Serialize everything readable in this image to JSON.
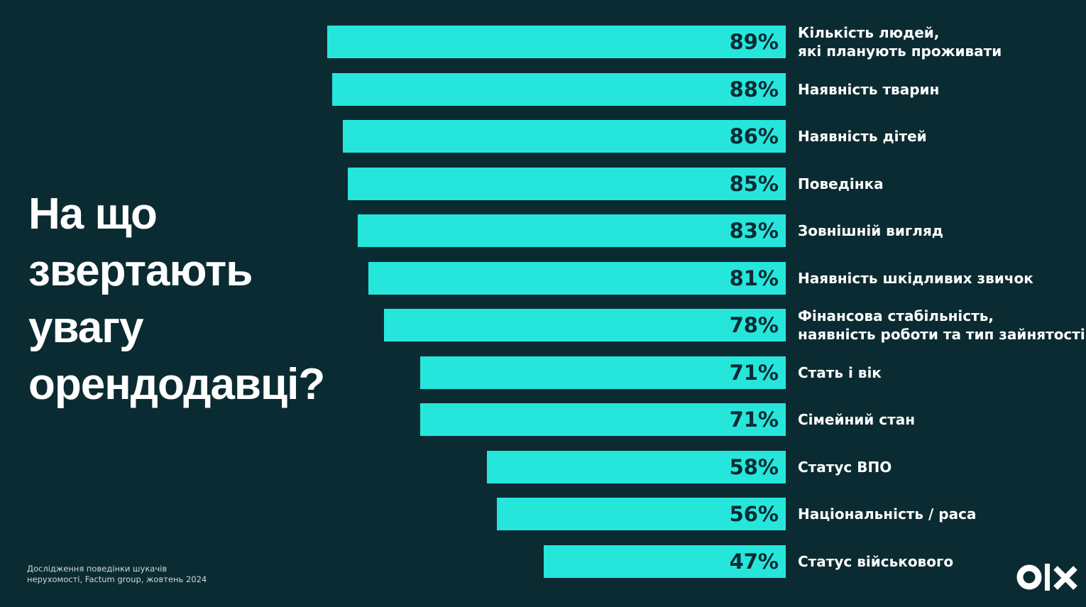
{
  "chart_data": {
    "type": "bar",
    "orientation": "horizontal",
    "title": "На що звертають увагу орендодавці?",
    "categories": [
      "Кількість людей,\nякі планують проживати",
      "Наявність тварин",
      "Наявність дітей",
      "Поведінка",
      "Зовнішній вигляд",
      "Наявність шкідливих звичок",
      "Фінансова стабільність,\nнаявність роботи та тип зайнятості",
      "Стать і вік",
      "Сімейний стан",
      "Статус ВПО",
      "Національність / раса",
      "Статус військового"
    ],
    "values": [
      89,
      88,
      86,
      85,
      83,
      81,
      78,
      71,
      71,
      58,
      56,
      47
    ],
    "value_labels": [
      "89%",
      "88%",
      "86%",
      "85%",
      "83%",
      "81%",
      "78%",
      "71%",
      "71%",
      "58%",
      "56%",
      "47%"
    ],
    "color": "#26e6dc",
    "xlim": [
      0,
      100
    ],
    "source": "Дослідження поведінки шукачів\nнерухомості, Factum group, жовтень 2024"
  }
}
